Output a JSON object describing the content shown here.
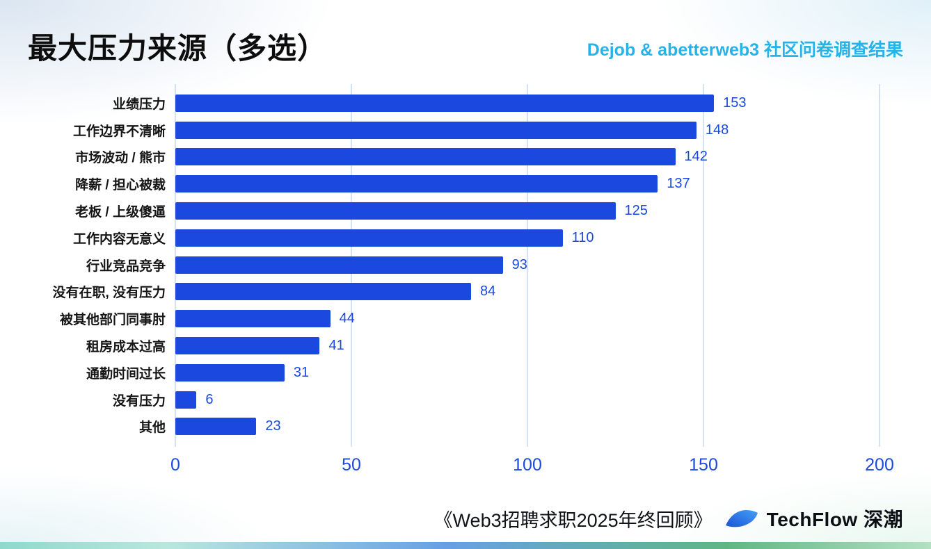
{
  "header": {
    "title": "最大压力来源（多选）",
    "subtitle": "Dejob & abetterweb3 社区问卷调查结果"
  },
  "chart_data": {
    "type": "bar",
    "orientation": "horizontal",
    "title": "最大压力来源（多选）",
    "categories": [
      "业绩压力",
      "工作边界不清晰",
      "市场波动 / 熊市",
      "降薪 / 担心被裁",
      "老板 / 上级傻逼",
      "工作内容无意义",
      "行业竞品竞争",
      "没有在职, 没有压力",
      "被其他部门同事肘",
      "租房成本过高",
      "通勤时间过长",
      "没有压力",
      "其他"
    ],
    "values": [
      153,
      148,
      142,
      137,
      125,
      110,
      93,
      84,
      44,
      41,
      31,
      6,
      23
    ],
    "xlabel": "",
    "ylabel": "",
    "xlim": [
      0,
      200
    ],
    "xticks": [
      0,
      50,
      100,
      150,
      200
    ],
    "grid": true,
    "legend": false,
    "bar_color": "#1b49e0",
    "value_label_color": "#1b49e0",
    "tick_color": "#1b49e0",
    "gridline_color": "#a9c7e8"
  },
  "footer": {
    "source": "《Web3招聘求职2025年终回顾》",
    "brand": "TechFlow 深潮"
  }
}
